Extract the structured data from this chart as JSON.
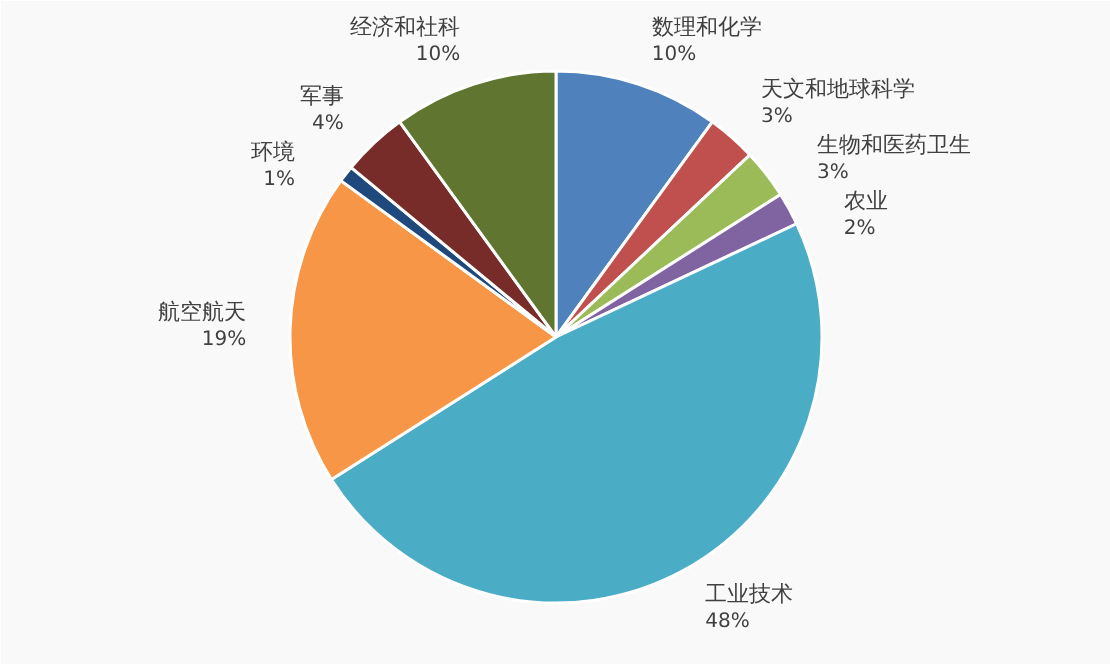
{
  "chart_data": {
    "type": "pie",
    "categories": [
      "数理和化学",
      "天文和地球科学",
      "生物和医药卫生",
      "农业",
      "工业技术",
      "航空航天",
      "环境",
      "军事",
      "经济和社科"
    ],
    "values": [
      10,
      3,
      3,
      2,
      48,
      19,
      1,
      4,
      10
    ],
    "value_labels": [
      "10%",
      "3%",
      "3%",
      "2%",
      "48%",
      "19%",
      "1%",
      "4%",
      "10%"
    ],
    "colors": [
      "#4f81bd",
      "#c0504d",
      "#9bbb59",
      "#8064a2",
      "#4bacc6",
      "#f79646",
      "#1f497d",
      "#772c2a",
      "#5f7530"
    ]
  }
}
